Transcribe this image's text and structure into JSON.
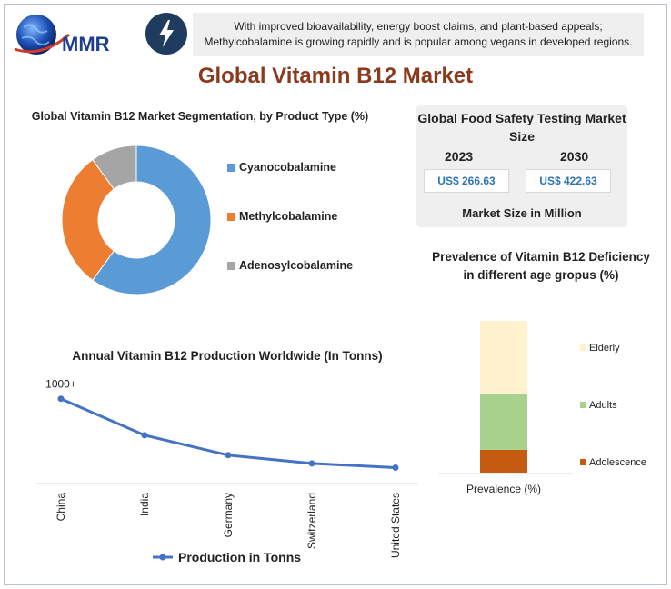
{
  "header": {
    "logo_text": "MMR",
    "banner_text": "With improved bioavailability, energy boost claims, and plant-based appeals; Methylcobalamine is growing rapidly and is popular among vegans in developed regions."
  },
  "main_title": "Global Vitamin B12 Market",
  "colors": {
    "title": "#8b3a1e",
    "blue": "#5b9bd5",
    "orange": "#ed7d31",
    "gray": "#a5a5a5",
    "cream": "#fff2cc",
    "green": "#a9d18e",
    "rust": "#c55a11",
    "line": "#4472c4",
    "value": "#2d73b8"
  },
  "market_size_card": {
    "title": "Global Food Safety Testing Market Size",
    "year_1": "2023",
    "value_1": "US$ 266.63",
    "year_2": "2030",
    "value_2": "US$ 422.63",
    "footer": "Market Size in Million"
  },
  "chart_data": [
    {
      "type": "pie",
      "title": "Global Vitamin B12 Market Segmentation, by Product Type (%)",
      "categories": [
        "Cyanocobalamine",
        "Methylcobalamine",
        "Adenosylcobalamine"
      ],
      "values": [
        60,
        30,
        10
      ],
      "donut": true,
      "colors": [
        "#5b9bd5",
        "#ed7d31",
        "#a5a5a5"
      ],
      "legend": "right"
    },
    {
      "type": "line",
      "title": "Annual Vitamin B12 Production Worldwide (In Tonns)",
      "categories": [
        "China",
        "India",
        "Germany",
        "Switzerland",
        "United States"
      ],
      "series": [
        {
          "name": "Production in Tonns",
          "values": [
            1000,
            560,
            320,
            220,
            170
          ]
        }
      ],
      "data_labels": [
        "1000+"
      ],
      "ylim": [
        0,
        1150
      ],
      "legend": "bottom",
      "grid": false
    },
    {
      "type": "bar",
      "stacked": true,
      "title": "Prevalence of Vitamin B12 Deficiency in different age gropus (%)",
      "categories": [
        "Prevalence (%)"
      ],
      "series": [
        {
          "name": "Adolescence",
          "values": [
            15
          ]
        },
        {
          "name": "Adults",
          "values": [
            37
          ]
        },
        {
          "name": "Elderly",
          "values": [
            48
          ]
        }
      ],
      "ylim": [
        0,
        100
      ],
      "legend": "right"
    }
  ]
}
